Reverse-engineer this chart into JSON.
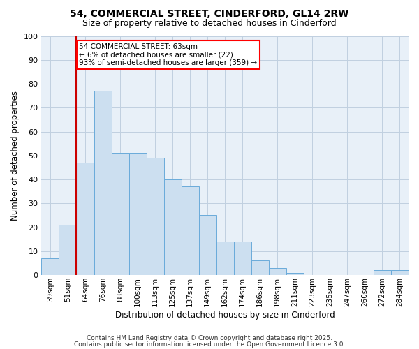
{
  "title_line1": "54, COMMERCIAL STREET, CINDERFORD, GL14 2RW",
  "title_line2": "Size of property relative to detached houses in Cinderford",
  "xlabel": "Distribution of detached houses by size in Cinderford",
  "ylabel": "Number of detached properties",
  "categories": [
    "39sqm",
    "51sqm",
    "64sqm",
    "76sqm",
    "88sqm",
    "100sqm",
    "113sqm",
    "125sqm",
    "137sqm",
    "149sqm",
    "162sqm",
    "174sqm",
    "186sqm",
    "198sqm",
    "211sqm",
    "223sqm",
    "235sqm",
    "247sqm",
    "260sqm",
    "272sqm",
    "284sqm"
  ],
  "values": [
    7,
    21,
    47,
    77,
    51,
    51,
    49,
    40,
    37,
    25,
    14,
    14,
    6,
    3,
    1,
    0,
    0,
    0,
    0,
    2,
    2
  ],
  "bar_color": "#ccdff0",
  "bar_edge_color": "#6aabda",
  "red_line_index": 2,
  "annotation_text": "54 COMMERCIAL STREET: 63sqm\n← 6% of detached houses are smaller (22)\n93% of semi-detached houses are larger (359) →",
  "annotation_box_color": "white",
  "annotation_box_edge_color": "red",
  "red_line_color": "#cc0000",
  "ylim": [
    0,
    100
  ],
  "yticks": [
    0,
    10,
    20,
    30,
    40,
    50,
    60,
    70,
    80,
    90,
    100
  ],
  "grid_color": "#c0d0e0",
  "background_color": "#e8f0f8",
  "fig_background_color": "#ffffff",
  "footer_line1": "Contains HM Land Registry data © Crown copyright and database right 2025.",
  "footer_line2": "Contains public sector information licensed under the Open Government Licence 3.0."
}
